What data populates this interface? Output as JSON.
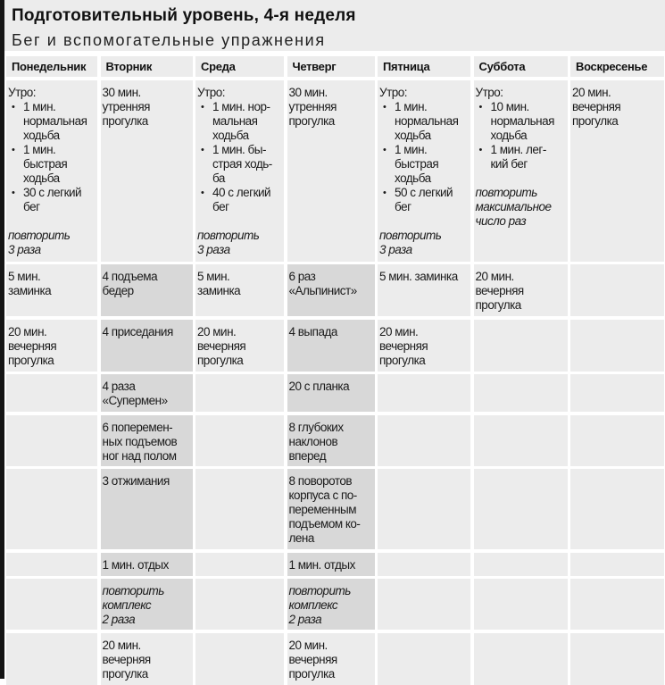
{
  "header": {
    "title": "Подготовительный уровень, 4-я неделя",
    "subtitle": "Бег и вспомогательные упражнения"
  },
  "days": [
    "Понедельник",
    "Вторник",
    "Среда",
    "Четверг",
    "Пятница",
    "Суббота",
    "Воскресенье"
  ],
  "colors": {
    "cell": "#ececec",
    "shaded_cell": "#d8d8d8",
    "left_bar": "#151515"
  },
  "rows": [
    {
      "cells": [
        {
          "shaded": false,
          "parts": [
            {
              "type": "text",
              "text": "Утро:"
            },
            {
              "type": "bullet",
              "text": "1 мин.\nнормальная\nходьба"
            },
            {
              "type": "bullet",
              "text": "1 мин.\nбыстрая\nходьба"
            },
            {
              "type": "bullet",
              "text": "30 с легкий\nбег"
            },
            {
              "type": "italic",
              "text": "повторить\n3 раза"
            }
          ]
        },
        {
          "shaded": false,
          "parts": [
            {
              "type": "text",
              "text": "30 мин.\nутренняя\nпрогулка"
            }
          ]
        },
        {
          "shaded": false,
          "parts": [
            {
              "type": "text",
              "text": "Утро:"
            },
            {
              "type": "bullet",
              "text": "1 мин. нор-\nмальная\nходьба"
            },
            {
              "type": "bullet",
              "text": "1 мин. бы-\nстрая ходь-\nба"
            },
            {
              "type": "bullet",
              "text": "40 с легкий\nбег"
            },
            {
              "type": "italic",
              "text": "повторить\n3 раза"
            }
          ]
        },
        {
          "shaded": false,
          "parts": [
            {
              "type": "text",
              "text": "30 мин.\nутренняя\nпрогулка"
            }
          ]
        },
        {
          "shaded": false,
          "parts": [
            {
              "type": "text",
              "text": "Утро:"
            },
            {
              "type": "bullet",
              "text": "1 мин.\nнормальная\nходьба"
            },
            {
              "type": "bullet",
              "text": "1 мин.\nбыстрая\nходьба"
            },
            {
              "type": "bullet",
              "text": "50 с легкий\nбег"
            },
            {
              "type": "italic",
              "text": "повторить\n3 раза"
            }
          ]
        },
        {
          "shaded": false,
          "parts": [
            {
              "type": "text",
              "text": "Утро:"
            },
            {
              "type": "bullet",
              "text": "10 мин.\nнормальная\nходьба"
            },
            {
              "type": "bullet",
              "text": "1 мин. лег-\nкий бег"
            },
            {
              "type": "italic",
              "text": "повторить\nмаксимальное\nчисло раз"
            }
          ]
        },
        {
          "shaded": false,
          "parts": [
            {
              "type": "text",
              "text": "20 мин.\nвечерняя\nпрогулка"
            }
          ]
        }
      ]
    },
    {
      "cells": [
        {
          "shaded": false,
          "parts": [
            {
              "type": "text",
              "text": "5 мин.\nзаминка"
            }
          ]
        },
        {
          "shaded": true,
          "parts": [
            {
              "type": "text",
              "text": "4 подъема\nбедер"
            }
          ]
        },
        {
          "shaded": false,
          "parts": [
            {
              "type": "text",
              "text": "5 мин.\nзаминка"
            }
          ]
        },
        {
          "shaded": true,
          "parts": [
            {
              "type": "text",
              "text": "6 раз\n«Альпинист»"
            }
          ]
        },
        {
          "shaded": false,
          "parts": [
            {
              "type": "text",
              "text": "5 мин. заминка"
            }
          ]
        },
        {
          "shaded": false,
          "parts": [
            {
              "type": "text",
              "text": "20 мин.\nвечерняя\nпрогулка"
            }
          ]
        },
        {
          "shaded": false,
          "parts": []
        }
      ]
    },
    {
      "cells": [
        {
          "shaded": false,
          "parts": [
            {
              "type": "text",
              "text": "20 мин.\nвечерняя\nпрогулка"
            }
          ]
        },
        {
          "shaded": true,
          "parts": [
            {
              "type": "text",
              "text": "4 приседания"
            }
          ]
        },
        {
          "shaded": false,
          "parts": [
            {
              "type": "text",
              "text": "20 мин.\nвечерняя\nпрогулка"
            }
          ]
        },
        {
          "shaded": true,
          "parts": [
            {
              "type": "text",
              "text": "4 выпада"
            }
          ]
        },
        {
          "shaded": false,
          "parts": [
            {
              "type": "text",
              "text": "20 мин.\nвечерняя\nпрогулка"
            }
          ]
        },
        {
          "shaded": false,
          "parts": []
        },
        {
          "shaded": false,
          "parts": []
        }
      ]
    },
    {
      "cells": [
        {
          "shaded": false,
          "parts": []
        },
        {
          "shaded": true,
          "parts": [
            {
              "type": "text",
              "text": "4 раза\n«Супермен»"
            }
          ]
        },
        {
          "shaded": false,
          "parts": []
        },
        {
          "shaded": true,
          "parts": [
            {
              "type": "text",
              "text": "20 с планка"
            }
          ]
        },
        {
          "shaded": false,
          "parts": []
        },
        {
          "shaded": false,
          "parts": []
        },
        {
          "shaded": false,
          "parts": []
        }
      ]
    },
    {
      "cells": [
        {
          "shaded": false,
          "parts": []
        },
        {
          "shaded": true,
          "parts": [
            {
              "type": "text",
              "text": "6 поперемен-\nных подъемов\nног над полом"
            }
          ]
        },
        {
          "shaded": false,
          "parts": []
        },
        {
          "shaded": true,
          "parts": [
            {
              "type": "text",
              "text": "8 глубоких\nнаклонов\nвперед"
            }
          ]
        },
        {
          "shaded": false,
          "parts": []
        },
        {
          "shaded": false,
          "parts": []
        },
        {
          "shaded": false,
          "parts": []
        }
      ]
    },
    {
      "cells": [
        {
          "shaded": false,
          "parts": []
        },
        {
          "shaded": true,
          "parts": [
            {
              "type": "text",
              "text": "3 отжимания"
            }
          ]
        },
        {
          "shaded": false,
          "parts": []
        },
        {
          "shaded": true,
          "parts": [
            {
              "type": "text",
              "text": "8 поворотов\nкорпуса с по-\nпеременным\nподъемом ко-\nлена"
            }
          ]
        },
        {
          "shaded": false,
          "parts": []
        },
        {
          "shaded": false,
          "parts": []
        },
        {
          "shaded": false,
          "parts": []
        }
      ]
    },
    {
      "cells": [
        {
          "shaded": false,
          "parts": []
        },
        {
          "shaded": true,
          "parts": [
            {
              "type": "text",
              "text": "1 мин. отдых"
            }
          ]
        },
        {
          "shaded": false,
          "parts": []
        },
        {
          "shaded": true,
          "parts": [
            {
              "type": "text",
              "text": "1 мин. отдых"
            }
          ]
        },
        {
          "shaded": false,
          "parts": []
        },
        {
          "shaded": false,
          "parts": []
        },
        {
          "shaded": false,
          "parts": []
        }
      ]
    },
    {
      "cells": [
        {
          "shaded": false,
          "parts": []
        },
        {
          "shaded": true,
          "parts": [
            {
              "type": "italic",
              "text": "повторить\nкомплекс\n2 раза"
            }
          ]
        },
        {
          "shaded": false,
          "parts": []
        },
        {
          "shaded": true,
          "parts": [
            {
              "type": "italic",
              "text": "повторить\nкомплекс\n2 раза"
            }
          ]
        },
        {
          "shaded": false,
          "parts": []
        },
        {
          "shaded": false,
          "parts": []
        },
        {
          "shaded": false,
          "parts": []
        }
      ]
    },
    {
      "cells": [
        {
          "shaded": false,
          "parts": []
        },
        {
          "shaded": false,
          "parts": [
            {
              "type": "text",
              "text": "20 мин.\nвечерняя\nпрогулка"
            }
          ]
        },
        {
          "shaded": false,
          "parts": []
        },
        {
          "shaded": false,
          "parts": [
            {
              "type": "text",
              "text": "20 мин.\nвечерняя\nпрогулка"
            }
          ]
        },
        {
          "shaded": false,
          "parts": []
        },
        {
          "shaded": false,
          "parts": []
        },
        {
          "shaded": false,
          "parts": []
        }
      ]
    }
  ]
}
